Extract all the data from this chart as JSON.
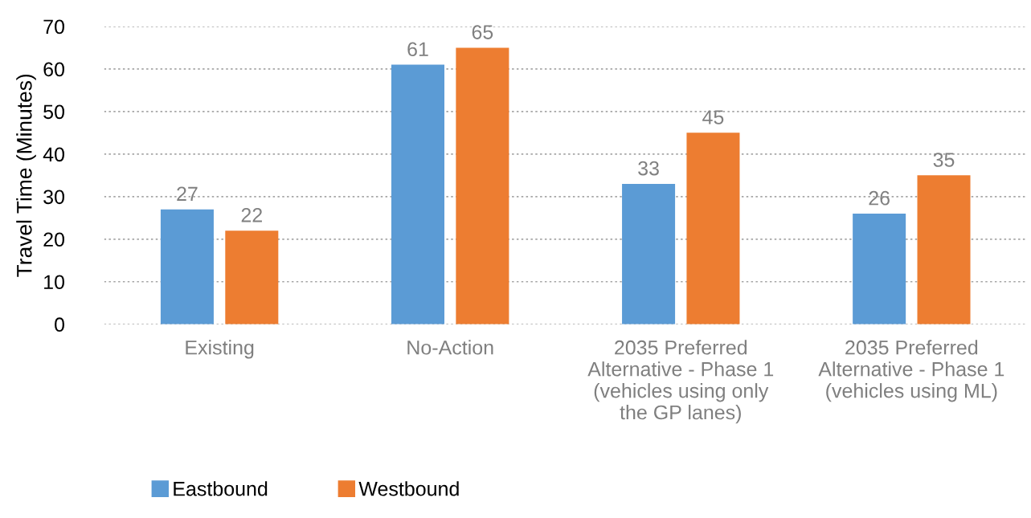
{
  "chart_data": {
    "type": "bar",
    "ylabel": "Travel Time (Minutes)",
    "categories": [
      "Existing",
      "No-Action",
      "2035 Preferred\nAlternative - Phase 1\n(vehicles using only\nthe GP lanes)",
      "2035 Preferred\nAlternative - Phase 1\n(vehicles using ML)"
    ],
    "series": [
      {
        "name": "Eastbound",
        "color": "#5b9bd5",
        "values": [
          27,
          61,
          33,
          26
        ]
      },
      {
        "name": "Westbound",
        "color": "#ed7d31",
        "values": [
          22,
          65,
          45,
          35
        ]
      }
    ],
    "ylim": [
      0,
      70
    ],
    "yticks": [
      0,
      10,
      20,
      30,
      40,
      50,
      60,
      70
    ],
    "grid": "y",
    "legend": "bottom",
    "data_labels": true
  }
}
